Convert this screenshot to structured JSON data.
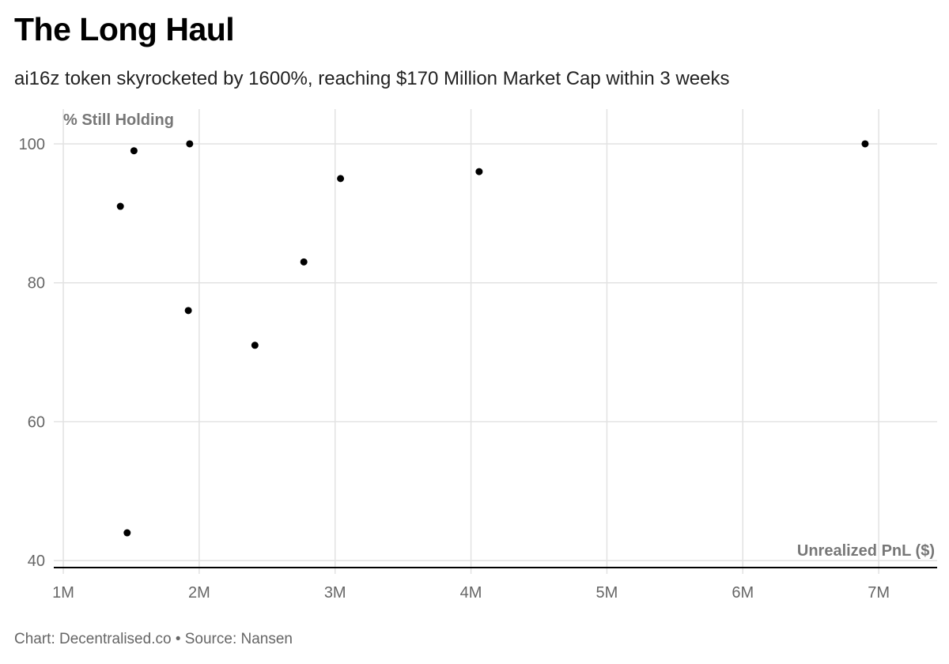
{
  "header": {
    "title": "The Long Haul",
    "subtitle": "ai16z token skyrocketed by 1600%, reaching $170 Million Market Cap within 3 weeks"
  },
  "footer": {
    "credit": "Chart: Decentralised.co • Source: Nansen"
  },
  "colors": {
    "point": "#000000",
    "grid": "#e2e2e2",
    "axis": "#000000"
  },
  "chart_data": {
    "type": "scatter",
    "title": "The Long Haul",
    "subtitle": "ai16z token skyrocketed by 1600%, reaching $170 Million Market Cap within 3 weeks",
    "xlabel": "Unrealized PnL ($)",
    "ylabel": "% Still Holding",
    "xlim": [
      0.93,
      7.43
    ],
    "ylim": [
      39,
      105
    ],
    "x_unit": "million USD",
    "x_ticks": [
      1,
      2,
      3,
      4,
      5,
      6,
      7
    ],
    "x_tick_labels": [
      "1M",
      "2M",
      "3M",
      "4M",
      "5M",
      "6M",
      "7M"
    ],
    "y_ticks": [
      40,
      60,
      80,
      100
    ],
    "y_tick_labels": [
      "40",
      "60",
      "80",
      "100"
    ],
    "grid": true,
    "legend": "none",
    "points": [
      {
        "x": 1.42,
        "y": 91
      },
      {
        "x": 1.47,
        "y": 44
      },
      {
        "x": 1.52,
        "y": 99
      },
      {
        "x": 1.92,
        "y": 76
      },
      {
        "x": 1.93,
        "y": 100
      },
      {
        "x": 2.41,
        "y": 71
      },
      {
        "x": 2.77,
        "y": 83
      },
      {
        "x": 3.04,
        "y": 95
      },
      {
        "x": 4.06,
        "y": 96
      },
      {
        "x": 6.9,
        "y": 100
      }
    ]
  }
}
